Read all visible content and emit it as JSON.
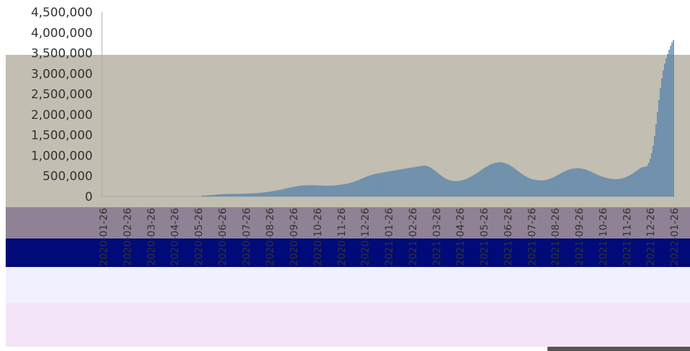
{
  "chart_data": {
    "type": "bar",
    "title": "",
    "xlabel": "",
    "ylabel": "",
    "ylim": [
      0,
      4500000
    ],
    "y_ticks": [
      "4,500,000",
      "4,000,000",
      "3,500,000",
      "3,000,000",
      "2,500,000",
      "2,000,000",
      "1,500,000",
      "1,000,000",
      "500,000",
      "0"
    ],
    "y_tick_values": [
      4500000,
      4000000,
      3500000,
      3000000,
      2500000,
      2000000,
      1500000,
      1000000,
      500000,
      0
    ],
    "x_ticks": [
      "2020-01-26",
      "2020-02-26",
      "2020-03-26",
      "2020-04-26",
      "2020-05-26",
      "2020-06-26",
      "2020-07-26",
      "2020-08-26",
      "2020-09-26",
      "2020-10-26",
      "2020-11-26",
      "2020-12-26",
      "2021-01-26",
      "2021-02-26",
      "2021-03-26",
      "2021-04-26",
      "2021-05-26",
      "2021-06-26",
      "2021-07-26",
      "2021-08-26",
      "2021-09-26",
      "2021-10-26",
      "2021-11-26",
      "2021-12-26",
      "2022-01-26"
    ],
    "grid": false,
    "legend": "none",
    "bar_color": "#4f7eaa",
    "plot_background": "#c2beb1",
    "overlay_colors": [
      "#8f8294",
      "#000a78",
      "#f4e6f8",
      "#f0f0ff"
    ],
    "series": [
      {
        "values": [
          0,
          0,
          0,
          0,
          0,
          0,
          0,
          0,
          0,
          0,
          0,
          0,
          0,
          0,
          0,
          0,
          0,
          0,
          0,
          0,
          0,
          0,
          0,
          0,
          0,
          0,
          0,
          0,
          0,
          0,
          0,
          0,
          0,
          0,
          0,
          0,
          0,
          0,
          0,
          0,
          0,
          0,
          0,
          0,
          0,
          0,
          0,
          0,
          0,
          0,
          0,
          0,
          0,
          0,
          0,
          0,
          0,
          0,
          0,
          0,
          0,
          0,
          0,
          0,
          0,
          0,
          0,
          0,
          20000,
          22000,
          24000,
          26000,
          28000,
          31000,
          34000,
          37000,
          40000,
          43000,
          46000,
          49000,
          52000,
          55000,
          57000,
          59000,
          60000,
          61000,
          62000,
          63000,
          63000,
          64000,
          64000,
          65000,
          65000,
          66000,
          66000,
          67000,
          68000,
          69000,
          70000,
          71000,
          72000,
          73000,
          75000,
          77000,
          79000,
          81000,
          84000,
          87000,
          90000,
          93000,
          96000,
          100000,
          104000,
          108000,
          113000,
          118000,
          123000,
          129000,
          135000,
          141000,
          148000,
          155000,
          162000,
          170000,
          178000,
          186000,
          194000,
          202000,
          210000,
          218000,
          225000,
          232000,
          239000,
          245000,
          250000,
          255000,
          260000,
          264000,
          267000,
          270000,
          272000,
          274000,
          275000,
          276000,
          276000,
          276000,
          275000,
          274000,
          272000,
          270000,
          268000,
          266000,
          264000,
          263000,
          262000,
          262000,
          262000,
          263000,
          265000,
          267000,
          270000,
          273000,
          277000,
          281000,
          286000,
          291000,
          297000,
          303000,
          310000,
          317000,
          325000,
          334000,
          344000,
          355000,
          367000,
          380000,
          394000,
          409000,
          424000,
          439000,
          454000,
          469000,
          483000,
          496000,
          508000,
          520000,
          531000,
          541000,
          550000,
          558000,
          565000,
          572000,
          578000,
          584000,
          590000,
          596000,
          602000,
          608000,
          614000,
          620000,
          626000,
          632000,
          638000,
          644000,
          650000,
          656000,
          662000,
          668000,
          674000,
          680000,
          686000,
          692000,
          698000,
          704000,
          710000,
          716000,
          722000,
          728000,
          734000,
          740000,
          746000,
          751000,
          754000,
          752000,
          745000,
          733000,
          716000,
          695000,
          672000,
          647000,
          620000,
          592000,
          564000,
          536000,
          510000,
          485000,
          462000,
          441000,
          423000,
          408000,
          396000,
          387000,
          381000,
          378000,
          377000,
          378000,
          381000,
          386000,
          393000,
          402000,
          413000,
          426000,
          441000,
          457000,
          475000,
          494000,
          514000,
          535000,
          557000,
          580000,
          604000,
          628000,
          652000,
          676000,
          699000,
          721000,
          742000,
          761000,
          778000,
          793000,
          806000,
          817000,
          825000,
          831000,
          834000,
          834000,
          831000,
          825000,
          816000,
          804000,
          789000,
          772000,
          752000,
          730000,
          706000,
          681000,
          655000,
          628000,
          601000,
          575000,
          550000,
          527000,
          505000,
          485000,
          467000,
          451000,
          437000,
          425000,
          415000,
          407000,
          401000,
          397000,
          394000,
          393000,
          394000,
          397000,
          402000,
          409000,
          418000,
          429000,
          442000,
          457000,
          473000,
          490000,
          508000,
          527000,
          546000,
          565000,
          584000,
          602000,
          619000,
          634000,
          648000,
          660000,
          670000,
          678000,
          684000,
          688000,
          690000,
          690000,
          688000,
          684000,
          678000,
          670000,
          660000,
          648000,
          634000,
          619000,
          603000,
          586000,
          569000,
          552000,
          536000,
          521000,
          507000,
          494000,
          482000,
          471000,
          461000,
          452000,
          444000,
          437000,
          431000,
          427000,
          424000,
          423000,
          424000,
          427000,
          432000,
          439000,
          448000,
          459000,
          472000,
          487000,
          504000,
          523000,
          544000,
          566000,
          590000,
          615000,
          641000,
          667000,
          690000,
          708000,
          718000,
          722000,
          730000,
          760000,
          820000,
          920000,
          1060000,
          1240000,
          1480000,
          1760000,
          2060000,
          2360000,
          2640000,
          2880000,
          3080000,
          3240000,
          3370000,
          3480000,
          3580000,
          3680000,
          3760000,
          3820000
        ]
      }
    ]
  }
}
